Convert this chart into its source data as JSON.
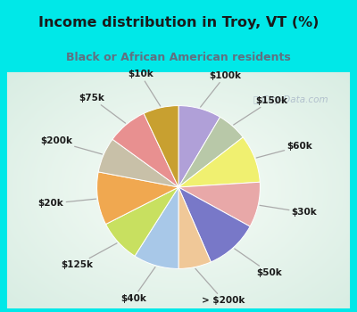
{
  "title": "Income distribution in Troy, VT (%)",
  "subtitle": "Black or African American residents",
  "bg_cyan": "#00e8e8",
  "bg_chart": "#e8f5ee",
  "segments": [
    {
      "label": "$100k",
      "value": 8.5,
      "color": "#b0a0d8"
    },
    {
      "label": "$150k",
      "value": 6.0,
      "color": "#b8c8a8"
    },
    {
      "label": "$60k",
      "value": 9.5,
      "color": "#f0f070"
    },
    {
      "label": "$30k",
      "value": 9.0,
      "color": "#e8a8a8"
    },
    {
      "label": "$50k",
      "value": 10.5,
      "color": "#7878c8"
    },
    {
      "label": "> $200k",
      "value": 6.5,
      "color": "#f0c898"
    },
    {
      "label": "$40k",
      "value": 9.0,
      "color": "#a8c8e8"
    },
    {
      "label": "$125k",
      "value": 8.5,
      "color": "#c8e060"
    },
    {
      "label": "$20k",
      "value": 10.5,
      "color": "#f0a850"
    },
    {
      "label": "$200k",
      "value": 7.0,
      "color": "#c8c0a8"
    },
    {
      "label": "$75k",
      "value": 8.0,
      "color": "#e89090"
    },
    {
      "label": "$10k",
      "value": 7.0,
      "color": "#c8a030"
    }
  ],
  "title_color": "#1a1a1a",
  "subtitle_color": "#607080",
  "label_color": "#1a1a1a",
  "watermark_color": "#aab8c8",
  "title_fontsize": 11.5,
  "subtitle_fontsize": 9.0,
  "label_fontsize": 7.5
}
